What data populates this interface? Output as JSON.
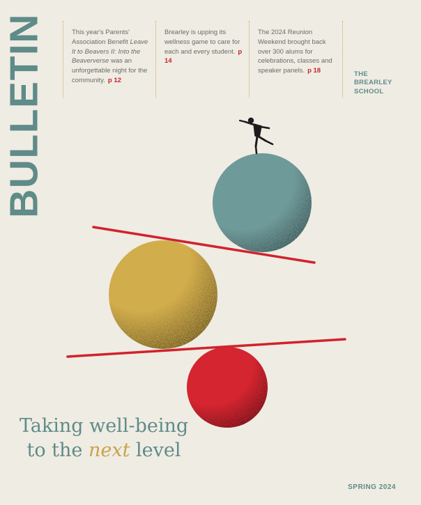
{
  "masthead": {
    "title": "BULLETIN"
  },
  "teasers": [
    {
      "text_before": "This year's Parents' Association Benefit ",
      "text_italic": "Leave It to Beavers II: Into the Beaververse",
      "text_after": " was an unforgettable night for the community.",
      "page": "p 12"
    },
    {
      "text": "Brearley is upping its wellness game to care for each and every student.",
      "page": "p 14"
    },
    {
      "text": "The 2024 Reunion Weekend brought back over 300 alums for celebrations, classes and speaker panels.",
      "page": "p 18"
    }
  ],
  "school": {
    "line1": "THE",
    "line2": "BREARLEY",
    "line3": "SCHOOL"
  },
  "headline": {
    "line1": "Taking well-being",
    "line2_before": "to the ",
    "line2_italic": "next",
    "line2_after": " level"
  },
  "issue": "SPRING 2024",
  "colors": {
    "background": "#efece3",
    "accent_teal": "#5f8b88",
    "sphere_teal": "#6f9a9a",
    "sphere_gold": "#d2ad4c",
    "sphere_red": "#d42530",
    "line_red": "#d0232d",
    "page_ref_red": "#c8232c"
  },
  "illustration": {
    "description_icons": [
      "balancing-figure-icon",
      "teal-sphere",
      "gold-sphere",
      "red-sphere",
      "tilted-plank-top",
      "tilted-plank-bottom"
    ]
  }
}
